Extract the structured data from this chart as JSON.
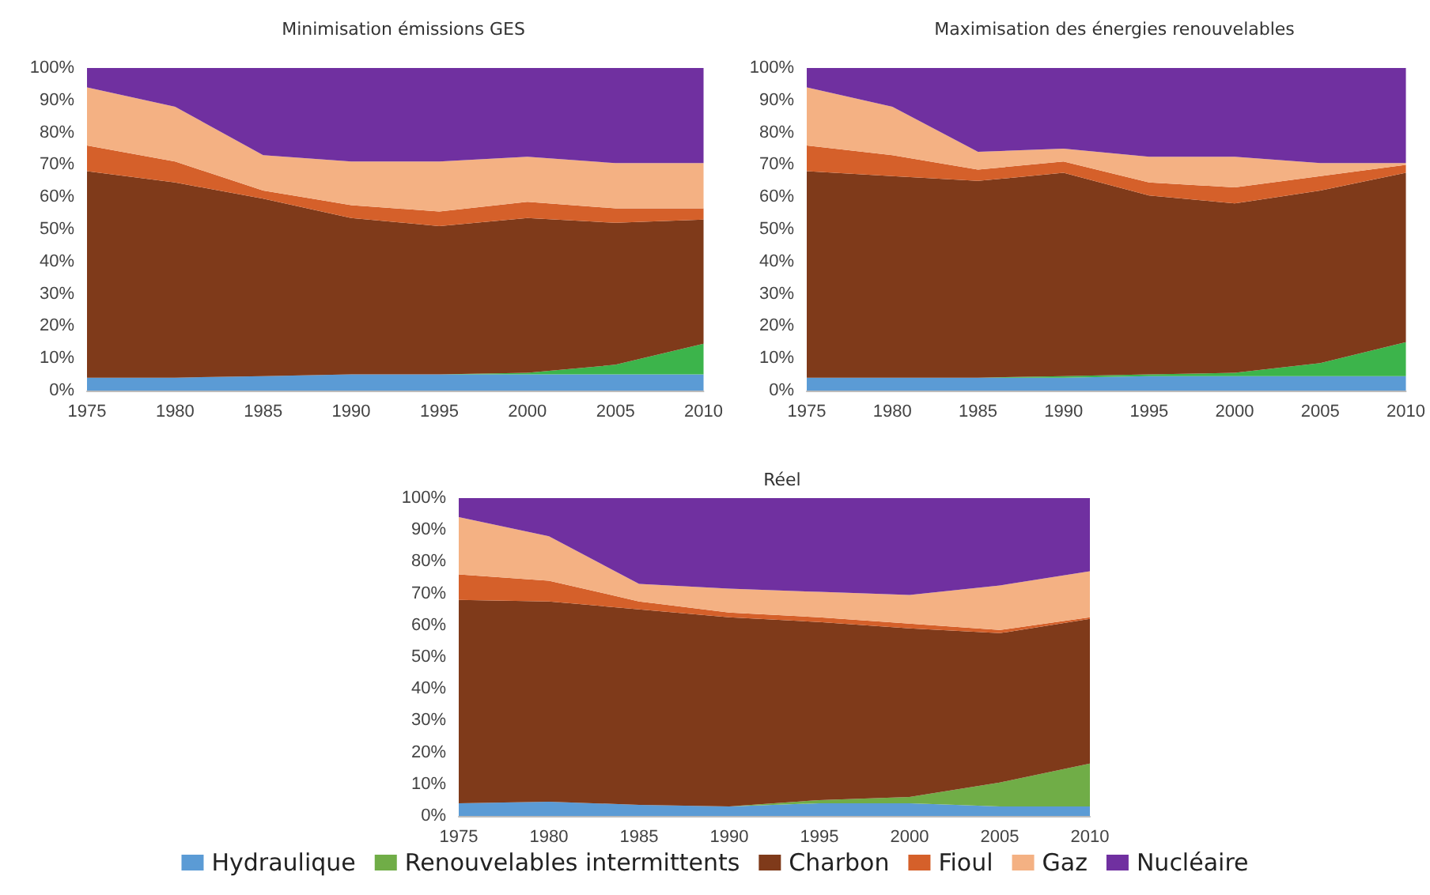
{
  "chart_data": [
    {
      "type": "area",
      "title": "Minimisation émissions GES",
      "stacked": true,
      "x": [
        1975,
        1980,
        1985,
        1990,
        1995,
        2000,
        2005,
        2010
      ],
      "xlim": [
        1975,
        2010
      ],
      "xticks": [
        1975,
        1980,
        1985,
        1990,
        1995,
        2000,
        2005,
        2010
      ],
      "ylim": [
        0,
        100
      ],
      "yticks": [
        {
          "value": 0,
          "label": "0%"
        },
        {
          "value": 10,
          "label": "10%"
        },
        {
          "value": 20,
          "label": "20%"
        },
        {
          "value": 30,
          "label": "30%"
        },
        {
          "value": 40,
          "label": "40%"
        },
        {
          "value": 50,
          "label": "50%"
        },
        {
          "value": 60,
          "label": "60%"
        },
        {
          "value": 70,
          "label": "70%"
        },
        {
          "value": 80,
          "label": "80%"
        },
        {
          "value": 90,
          "label": "90%"
        },
        {
          "value": 100,
          "label": "100%"
        }
      ],
      "grid": false,
      "legend": false,
      "series": [
        {
          "color": "#5b9bd5",
          "values": [
            4,
            4,
            4.5,
            5,
            5,
            5,
            5,
            5
          ]
        },
        {
          "color": "#3cb44b",
          "values": [
            0,
            0,
            0,
            0,
            0,
            0.5,
            3,
            9.5
          ]
        },
        {
          "color": "#7f3a1a",
          "values": [
            64,
            60.5,
            55,
            48.5,
            46,
            48,
            44,
            38.5
          ]
        },
        {
          "color": "#d5602a",
          "values": [
            8,
            6.5,
            2.5,
            4,
            4.5,
            5,
            4.5,
            3.5
          ]
        },
        {
          "color": "#f4b183",
          "values": [
            18,
            17,
            11,
            13.5,
            15.5,
            14,
            14,
            14
          ]
        },
        {
          "color": "#7030a0",
          "values": [
            6,
            12,
            27,
            29,
            29,
            27.5,
            29.5,
            29.5
          ]
        }
      ]
    },
    {
      "type": "area",
      "title": "Maximisation des énergies renouvelables",
      "stacked": true,
      "x": [
        1975,
        1980,
        1985,
        1990,
        1995,
        2000,
        2005,
        2010
      ],
      "xlim": [
        1975,
        2010
      ],
      "xticks": [
        1975,
        1980,
        1985,
        1990,
        1995,
        2000,
        2005,
        2010
      ],
      "ylim": [
        0,
        100
      ],
      "yticks": [
        {
          "value": 0,
          "label": "0%"
        },
        {
          "value": 10,
          "label": "10%"
        },
        {
          "value": 20,
          "label": "20%"
        },
        {
          "value": 30,
          "label": "30%"
        },
        {
          "value": 40,
          "label": "40%"
        },
        {
          "value": 50,
          "label": "50%"
        },
        {
          "value": 60,
          "label": "60%"
        },
        {
          "value": 70,
          "label": "70%"
        },
        {
          "value": 80,
          "label": "80%"
        },
        {
          "value": 90,
          "label": "90%"
        },
        {
          "value": 100,
          "label": "100%"
        }
      ],
      "grid": false,
      "legend": false,
      "series": [
        {
          "color": "#5b9bd5",
          "values": [
            4,
            4,
            4,
            4,
            4.5,
            4.5,
            4.5,
            4.5
          ]
        },
        {
          "color": "#3cb44b",
          "values": [
            0,
            0,
            0,
            0.5,
            0.5,
            1,
            4,
            10.5
          ]
        },
        {
          "color": "#7f3a1a",
          "values": [
            64,
            62.5,
            61,
            63,
            55.5,
            52.5,
            53.5,
            52.5
          ]
        },
        {
          "color": "#d5602a",
          "values": [
            8,
            6.5,
            3.5,
            3.5,
            4,
            5,
            4.5,
            2.5
          ]
        },
        {
          "color": "#f4b183",
          "values": [
            18,
            15,
            5.5,
            4,
            8,
            9.5,
            4,
            0.5
          ]
        },
        {
          "color": "#7030a0",
          "values": [
            6,
            12,
            26,
            25,
            27.5,
            27.5,
            29.5,
            29.5
          ]
        }
      ]
    },
    {
      "type": "area",
      "title": "Réel",
      "stacked": true,
      "x": [
        1975,
        1980,
        1985,
        1990,
        1995,
        2000,
        2005,
        2010
      ],
      "xlim": [
        1975,
        2010
      ],
      "xticks": [
        1975,
        1980,
        1985,
        1990,
        1995,
        2000,
        2005,
        2010
      ],
      "ylim": [
        0,
        100
      ],
      "yticks": [
        {
          "value": 0,
          "label": "0%"
        },
        {
          "value": 10,
          "label": "10%"
        },
        {
          "value": 20,
          "label": "20%"
        },
        {
          "value": 30,
          "label": "30%"
        },
        {
          "value": 40,
          "label": "40%"
        },
        {
          "value": 50,
          "label": "50%"
        },
        {
          "value": 60,
          "label": "60%"
        },
        {
          "value": 70,
          "label": "70%"
        },
        {
          "value": 80,
          "label": "80%"
        },
        {
          "value": 90,
          "label": "90%"
        },
        {
          "value": 100,
          "label": "100%"
        }
      ],
      "grid": false,
      "legend": "bottom",
      "series": [
        {
          "name": "Hydraulique",
          "color": "#5b9bd5",
          "values": [
            4,
            4.5,
            3.5,
            3,
            4,
            4,
            3,
            3
          ]
        },
        {
          "name": "Renouvelables intermittents",
          "color": "#70ad47",
          "values": [
            0,
            0,
            0,
            0,
            1,
            2,
            7.5,
            13.5
          ]
        },
        {
          "name": "Charbon",
          "color": "#7f3a1a",
          "values": [
            64,
            63,
            61.5,
            59.5,
            56,
            53,
            47,
            45.5
          ]
        },
        {
          "name": "Fioul",
          "color": "#d5602a",
          "values": [
            8,
            6.5,
            2.5,
            1.5,
            1.5,
            1.5,
            1,
            0.5
          ]
        },
        {
          "name": "Gaz",
          "color": "#f4b183",
          "values": [
            18,
            14,
            5.5,
            7.5,
            8,
            9,
            14,
            14.5
          ]
        },
        {
          "name": "Nucléaire",
          "color": "#7030a0",
          "values": [
            6,
            12,
            27,
            28.5,
            29.5,
            30.5,
            27.5,
            23
          ]
        }
      ]
    }
  ]
}
